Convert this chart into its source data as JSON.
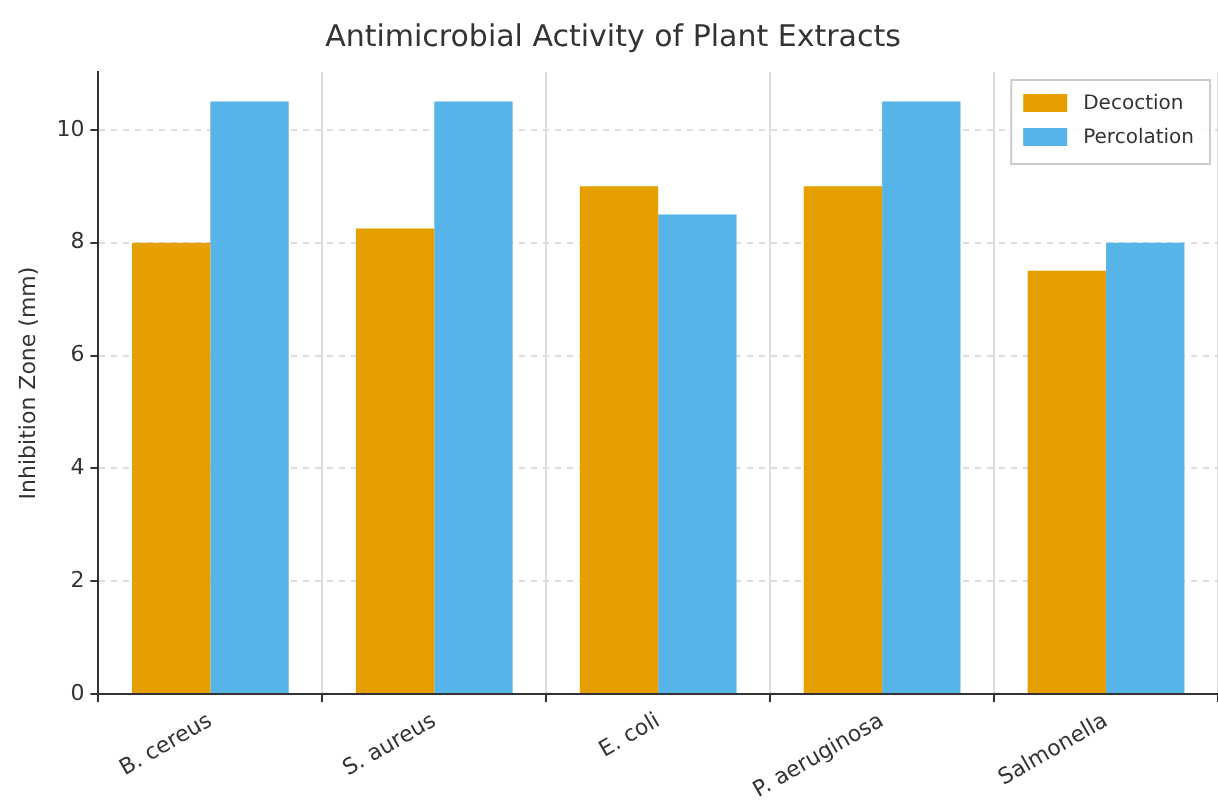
{
  "chart_data": {
    "type": "bar",
    "title": "Antimicrobial Activity of Plant Extracts",
    "ylabel": "Inhibition Zone (mm)",
    "categories": [
      "B. cereus",
      "S. aureus",
      "E. coli",
      "P. aeruginosa",
      "Salmonella"
    ],
    "series": [
      {
        "name": "Decoction",
        "color": "#e69f00",
        "values": [
          8,
          8.25,
          9,
          9,
          7.5
        ]
      },
      {
        "name": "Percolation",
        "color": "#56b4e9",
        "values": [
          10.5,
          10.5,
          8.5,
          10.5,
          8
        ]
      }
    ],
    "ylim": [
      0,
      11.025
    ],
    "yticks": [
      0,
      2,
      4,
      6,
      8,
      10
    ],
    "grid": true,
    "legend": "top right"
  }
}
